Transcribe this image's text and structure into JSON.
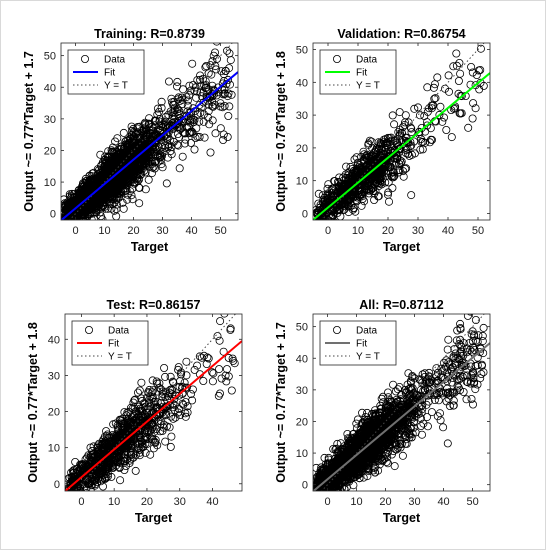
{
  "chart_data": [
    {
      "type": "scatter",
      "title": "Training: R=0.8739",
      "xlabel": "Target",
      "ylabel": "Output ~= 0.77*Target + 1.7",
      "xlim": [
        -5,
        56
      ],
      "ylim": [
        -2,
        54
      ],
      "xticks": [
        0,
        10,
        20,
        30,
        40,
        50
      ],
      "yticks": [
        0,
        10,
        20,
        30,
        40,
        50
      ],
      "fit": {
        "slope": 0.77,
        "intercept": 1.7,
        "color": "#0000ff"
      },
      "legend": {
        "placement": "top-left",
        "entries": [
          "Data",
          "Fit",
          "Y = T"
        ]
      },
      "density": "high"
    },
    {
      "type": "scatter",
      "title": "Validation: R=0.86754",
      "xlabel": "Target",
      "ylabel": "Output ~= 0.76*Target + 1.8",
      "xlim": [
        -5,
        54
      ],
      "ylim": [
        -2,
        52
      ],
      "xticks": [
        0,
        10,
        20,
        30,
        40,
        50
      ],
      "yticks": [
        0,
        10,
        20,
        30,
        40,
        50
      ],
      "fit": {
        "slope": 0.76,
        "intercept": 1.8,
        "color": "#00ff00"
      },
      "legend": {
        "placement": "top-left",
        "entries": [
          "Data",
          "Fit",
          "Y = T"
        ]
      },
      "density": "medium"
    },
    {
      "type": "scatter",
      "title": "Test: R=0.86157",
      "xlabel": "Target",
      "ylabel": "Output ~= 0.77*Target + 1.8",
      "xlim": [
        -5,
        49
      ],
      "ylim": [
        -2,
        47
      ],
      "xticks": [
        0,
        10,
        20,
        30,
        40
      ],
      "yticks": [
        0,
        10,
        20,
        30,
        40
      ],
      "fit": {
        "slope": 0.77,
        "intercept": 1.8,
        "color": "#ff0000"
      },
      "legend": {
        "placement": "top-left",
        "entries": [
          "Data",
          "Fit",
          "Y = T"
        ]
      },
      "density": "medium"
    },
    {
      "type": "scatter",
      "title": "All: R=0.87112",
      "xlabel": "Target",
      "ylabel": "Output ~= 0.77*Target + 1.7",
      "xlim": [
        -5,
        56
      ],
      "ylim": [
        -2,
        54
      ],
      "xticks": [
        0,
        10,
        20,
        30,
        40,
        50
      ],
      "yticks": [
        0,
        10,
        20,
        30,
        40,
        50
      ],
      "fit": {
        "slope": 0.77,
        "intercept": 1.7,
        "color": "#707070"
      },
      "legend": {
        "placement": "top-left",
        "entries": [
          "Data",
          "Fit",
          "Y = T"
        ]
      },
      "density": "high"
    }
  ]
}
